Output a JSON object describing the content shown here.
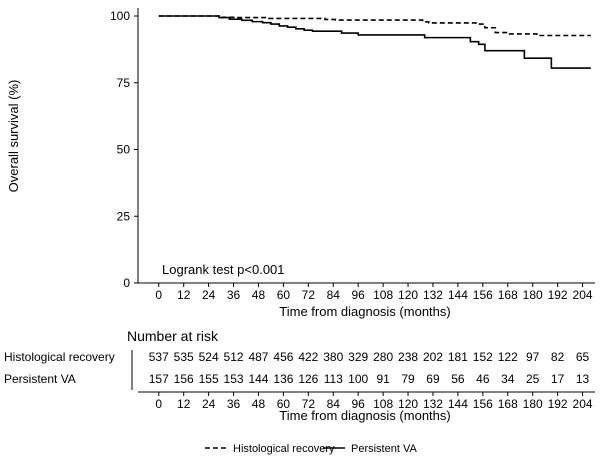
{
  "chart_data": {
    "type": "line",
    "ylabel": "Overall survival (%)",
    "xlabel": "Time from diagnosis (months)",
    "xlim": [
      -10,
      210
    ],
    "ylim": [
      0,
      103
    ],
    "x_ticks": [
      0,
      12,
      24,
      36,
      48,
      60,
      72,
      84,
      96,
      108,
      120,
      132,
      144,
      156,
      168,
      180,
      192,
      204
    ],
    "y_ticks": [
      0,
      25,
      50,
      75,
      100
    ],
    "grid": false,
    "annotation": "Logrank test p<0.001",
    "legend_position": "bottom",
    "series": [
      {
        "name": "Histological recovery",
        "line_style": "dashed",
        "color": "#000000",
        "x": [
          0,
          27,
          30,
          37,
          53,
          80,
          85,
          127,
          130,
          154,
          157,
          162,
          168,
          182,
          208
        ],
        "y": [
          100,
          100,
          99.5,
          99.4,
          99.1,
          98.7,
          98.5,
          97.8,
          97.4,
          97.0,
          95.6,
          93.8,
          93.3,
          92.7,
          92.7
        ]
      },
      {
        "name": "Persistent VA",
        "line_style": "solid",
        "color": "#000000",
        "x": [
          0,
          25,
          29,
          34,
          40,
          45,
          50,
          54,
          58,
          62,
          66,
          70,
          74,
          88,
          96,
          128,
          150,
          154,
          157,
          172,
          176,
          181,
          189,
          208
        ],
        "y": [
          100,
          100,
          99.4,
          98.8,
          98.4,
          97.9,
          97.5,
          97.0,
          96.3,
          95.8,
          95.2,
          94.7,
          94.3,
          93.6,
          92.9,
          91.9,
          90.4,
          89.4,
          87.0,
          87.0,
          84.2,
          84.2,
          80.5,
          80.5
        ]
      }
    ],
    "risk_table": {
      "title": "Number at risk",
      "xlabel": "Time from diagnosis (months)",
      "times": [
        0,
        12,
        24,
        36,
        48,
        60,
        72,
        84,
        96,
        108,
        120,
        132,
        144,
        156,
        168,
        180,
        192,
        204
      ],
      "rows": [
        {
          "label": "Histological recovery",
          "values": [
            537,
            535,
            524,
            512,
            487,
            456,
            422,
            380,
            329,
            280,
            238,
            202,
            181,
            152,
            122,
            97,
            82,
            65
          ]
        },
        {
          "label": "Persistent VA",
          "values": [
            157,
            156,
            155,
            153,
            144,
            136,
            126,
            113,
            100,
            91,
            79,
            69,
            56,
            46,
            34,
            25,
            17,
            13
          ]
        }
      ]
    }
  }
}
